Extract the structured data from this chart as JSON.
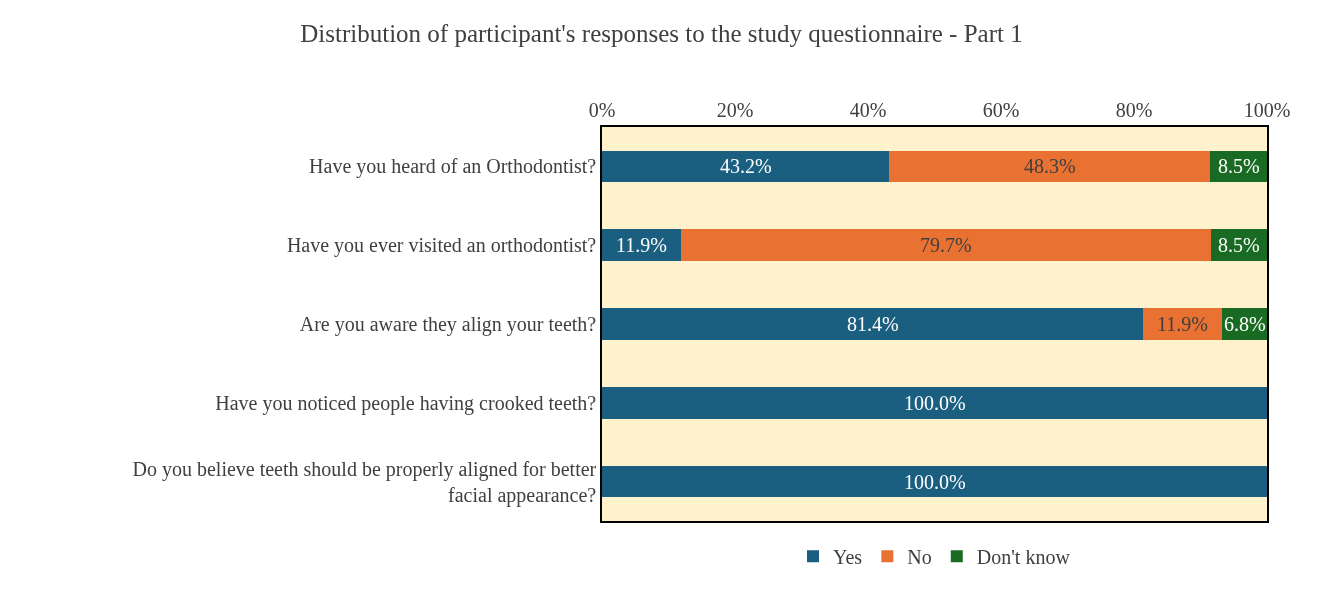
{
  "chart_data": {
    "type": "bar",
    "orientation": "horizontal",
    "stacked": true,
    "title": "Distribution of participant's responses to the study questionnaire - Part 1",
    "categories": [
      "Have you heard of an Orthodontist?",
      "Have you ever visited an orthodontist?",
      "Are you aware they align your teeth?",
      "Have you noticed people having crooked teeth?",
      "Do you believe teeth should be properly aligned for better facial appearance?"
    ],
    "series": [
      {
        "name": "Yes",
        "color": "#1a5e80",
        "values": [
          43.2,
          11.9,
          81.4,
          100.0,
          100.0
        ],
        "value_labels": [
          "43.2%",
          "11.9%",
          "81.4%",
          "100.0%",
          "100.0%"
        ]
      },
      {
        "name": "No",
        "color": "#e97132",
        "values": [
          48.3,
          79.7,
          11.9,
          null,
          null
        ],
        "value_labels": [
          "48.3%",
          "79.7%",
          "11.9%",
          null,
          null
        ]
      },
      {
        "name": "Don't know",
        "color": "#196b24",
        "values": [
          8.5,
          8.5,
          6.8,
          null,
          null
        ],
        "value_labels": [
          "8.5%",
          "8.5%",
          "6.8%",
          null,
          null
        ]
      }
    ],
    "xlim": [
      0,
      100
    ],
    "xticks": [
      {
        "value": 0,
        "label": "0%"
      },
      {
        "value": 20,
        "label": "20%"
      },
      {
        "value": 40,
        "label": "40%"
      },
      {
        "value": 60,
        "label": "60%"
      },
      {
        "value": 80,
        "label": "80%"
      },
      {
        "value": 100,
        "label": "100%"
      }
    ],
    "grid": false,
    "legend": "bottom"
  }
}
